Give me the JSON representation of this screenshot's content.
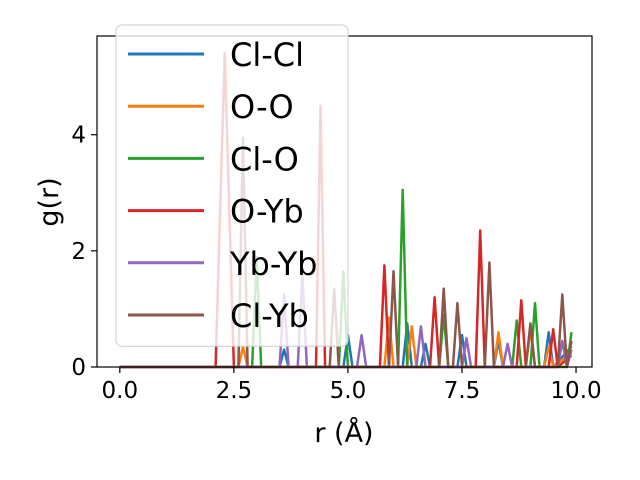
{
  "chart_data": {
    "type": "line",
    "xlabel": "r (Å)",
    "ylabel": "g(r)",
    "xlim": [
      -0.5,
      10.35
    ],
    "ylim": [
      0,
      5.7
    ],
    "xticks": [
      0.0,
      2.5,
      5.0,
      7.5,
      10.0
    ],
    "xtick_labels": [
      "0.0",
      "2.5",
      "5.0",
      "7.5",
      "10.0"
    ],
    "yticks": [
      0,
      2,
      4
    ],
    "ytick_labels": [
      "0",
      "2",
      "4"
    ],
    "grid": false,
    "legend_position": "upper-left",
    "series": [
      {
        "name": "Cl-Cl",
        "color": "#1f77b4",
        "points": [
          [
            0,
            0
          ],
          [
            3.5,
            0
          ],
          [
            3.6,
            0.3
          ],
          [
            3.7,
            0
          ],
          [
            4.9,
            0
          ],
          [
            5.0,
            0.55
          ],
          [
            5.1,
            0
          ],
          [
            6.2,
            0
          ],
          [
            6.3,
            0.75
          ],
          [
            6.4,
            0
          ],
          [
            6.6,
            0
          ],
          [
            6.7,
            0.4
          ],
          [
            6.8,
            0
          ],
          [
            7.4,
            0
          ],
          [
            7.5,
            0.55
          ],
          [
            7.6,
            0
          ],
          [
            8.2,
            0
          ],
          [
            8.3,
            0.45
          ],
          [
            8.4,
            0
          ],
          [
            9.3,
            0
          ],
          [
            9.4,
            0.6
          ],
          [
            9.5,
            0
          ],
          [
            9.9,
            0.35
          ]
        ]
      },
      {
        "name": "O-O",
        "color": "#ff7f0e",
        "points": [
          [
            0,
            0
          ],
          [
            2.6,
            0
          ],
          [
            2.7,
            0.35
          ],
          [
            2.8,
            0
          ],
          [
            5.8,
            0
          ],
          [
            5.9,
            0.85
          ],
          [
            6.0,
            0
          ],
          [
            6.3,
            0
          ],
          [
            6.4,
            0.7
          ],
          [
            6.5,
            0
          ],
          [
            8.2,
            0
          ],
          [
            8.3,
            0.6
          ],
          [
            8.4,
            0
          ],
          [
            8.9,
            0
          ],
          [
            9.0,
            0.65
          ],
          [
            9.1,
            0
          ],
          [
            9.3,
            0
          ],
          [
            9.4,
            0.35
          ],
          [
            9.5,
            0
          ],
          [
            9.9,
            0.25
          ]
        ]
      },
      {
        "name": "Cl-O",
        "color": "#2ca02c",
        "points": [
          [
            0,
            0
          ],
          [
            2.9,
            0
          ],
          [
            3.0,
            1.9
          ],
          [
            3.1,
            0
          ],
          [
            4.8,
            0
          ],
          [
            4.9,
            1.65
          ],
          [
            5.0,
            0
          ],
          [
            6.1,
            0
          ],
          [
            6.2,
            3.05
          ],
          [
            6.3,
            0
          ],
          [
            7.0,
            0
          ],
          [
            7.1,
            0.9
          ],
          [
            7.2,
            0
          ],
          [
            8.6,
            0
          ],
          [
            8.7,
            0.8
          ],
          [
            8.8,
            0
          ],
          [
            9.0,
            0
          ],
          [
            9.1,
            1.1
          ],
          [
            9.2,
            0
          ],
          [
            9.8,
            0
          ],
          [
            9.9,
            0.6
          ]
        ]
      },
      {
        "name": "O-Yb",
        "color": "#d62728",
        "points": [
          [
            0,
            0
          ],
          [
            2.1,
            0
          ],
          [
            2.3,
            5.4
          ],
          [
            2.5,
            0
          ],
          [
            4.3,
            0
          ],
          [
            4.4,
            4.5
          ],
          [
            4.5,
            0
          ],
          [
            5.7,
            0
          ],
          [
            5.8,
            1.75
          ],
          [
            5.9,
            0
          ],
          [
            6.8,
            0
          ],
          [
            6.9,
            1.2
          ],
          [
            7.0,
            0
          ],
          [
            7.8,
            0
          ],
          [
            7.9,
            2.35
          ],
          [
            8.0,
            0
          ],
          [
            8.7,
            0
          ],
          [
            8.8,
            1.15
          ],
          [
            8.9,
            0
          ],
          [
            9.4,
            0
          ],
          [
            9.5,
            0.65
          ],
          [
            9.6,
            0
          ],
          [
            9.9,
            0.2
          ]
        ]
      },
      {
        "name": "Yb-Yb",
        "color": "#9467bd",
        "points": [
          [
            0,
            0
          ],
          [
            3.5,
            0
          ],
          [
            3.6,
            1.25
          ],
          [
            3.7,
            0
          ],
          [
            3.9,
            0
          ],
          [
            4.0,
            1.6
          ],
          [
            4.1,
            0
          ],
          [
            5.2,
            0
          ],
          [
            5.3,
            0.55
          ],
          [
            5.4,
            0
          ],
          [
            6.5,
            0
          ],
          [
            6.6,
            0.7
          ],
          [
            6.7,
            0
          ],
          [
            7.5,
            0
          ],
          [
            7.6,
            0.5
          ],
          [
            7.7,
            0
          ],
          [
            8.4,
            0
          ],
          [
            8.5,
            0.4
          ],
          [
            8.6,
            0
          ],
          [
            9.6,
            0
          ],
          [
            9.7,
            0.45
          ],
          [
            9.8,
            0
          ],
          [
            9.9,
            0.3
          ]
        ]
      },
      {
        "name": "Cl-Yb",
        "color": "#8c564b",
        "points": [
          [
            0,
            0
          ],
          [
            2.6,
            0
          ],
          [
            2.7,
            3.95
          ],
          [
            2.8,
            0
          ],
          [
            4.6,
            0
          ],
          [
            4.7,
            1.35
          ],
          [
            4.8,
            0
          ],
          [
            5.9,
            0
          ],
          [
            6.0,
            1.65
          ],
          [
            6.1,
            0
          ],
          [
            7.0,
            0
          ],
          [
            7.1,
            1.35
          ],
          [
            7.2,
            0
          ],
          [
            7.3,
            0
          ],
          [
            7.4,
            1.1
          ],
          [
            7.5,
            0
          ],
          [
            8.0,
            0
          ],
          [
            8.1,
            1.8
          ],
          [
            8.2,
            0
          ],
          [
            8.9,
            0
          ],
          [
            9.0,
            0.75
          ],
          [
            9.1,
            0
          ],
          [
            9.6,
            0
          ],
          [
            9.7,
            1.25
          ],
          [
            9.8,
            0
          ],
          [
            9.9,
            0.45
          ]
        ]
      }
    ]
  }
}
